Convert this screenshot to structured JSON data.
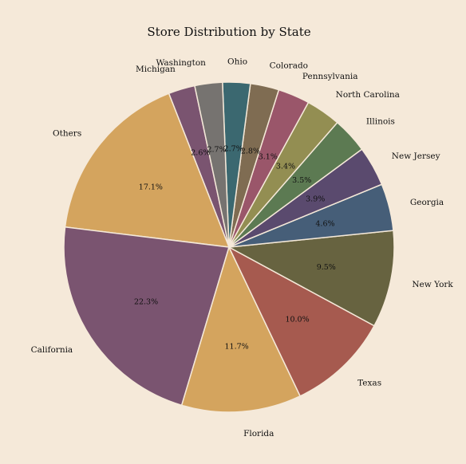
{
  "chart_data": {
    "type": "pie",
    "title": "Store Distribution by State",
    "start_angle_deg": 90,
    "direction": "counterclockwise",
    "order": [
      "Michigan",
      "Others",
      "California",
      "Florida",
      "Texas",
      "New York",
      "Georgia",
      "New Jersey",
      "Illinois",
      "North Carolina",
      "Pennsylvania",
      "Colorado",
      "Ohio",
      "Washington"
    ],
    "slices": [
      {
        "label": "Michigan",
        "value": 2.6,
        "pct_label": "2.6%",
        "color": "#7a5470"
      },
      {
        "label": "Others",
        "value": 17.1,
        "pct_label": "17.1%",
        "color": "#d4a45e"
      },
      {
        "label": "California",
        "value": 22.3,
        "pct_label": "22.3%",
        "color": "#7a5470"
      },
      {
        "label": "Florida",
        "value": 11.7,
        "pct_label": "11.7%",
        "color": "#d4a45e"
      },
      {
        "label": "Texas",
        "value": 10.0,
        "pct_label": "10.0%",
        "color": "#a65a4f"
      },
      {
        "label": "New York",
        "value": 9.5,
        "pct_label": "9.5%",
        "color": "#676340"
      },
      {
        "label": "Georgia",
        "value": 4.6,
        "pct_label": "4.6%",
        "color": "#465e78"
      },
      {
        "label": "New Jersey",
        "value": 3.9,
        "pct_label": "3.9%",
        "color": "#5a4a6e"
      },
      {
        "label": "Illinois",
        "value": 3.5,
        "pct_label": "3.5%",
        "color": "#5c7a52"
      },
      {
        "label": "North Carolina",
        "value": 3.4,
        "pct_label": "3.4%",
        "color": "#938e52"
      },
      {
        "label": "Pennsylvania",
        "value": 3.1,
        "pct_label": "3.1%",
        "color": "#9a566a"
      },
      {
        "label": "Colorado",
        "value": 2.8,
        "pct_label": "2.8%",
        "color": "#7f6c52"
      },
      {
        "label": "Ohio",
        "value": 2.7,
        "pct_label": "2.7%",
        "color": "#3b6870"
      },
      {
        "label": "Washington",
        "value": 2.7,
        "pct_label": "2.7%",
        "color": "#767370"
      }
    ],
    "background": "#f5e9d9"
  }
}
